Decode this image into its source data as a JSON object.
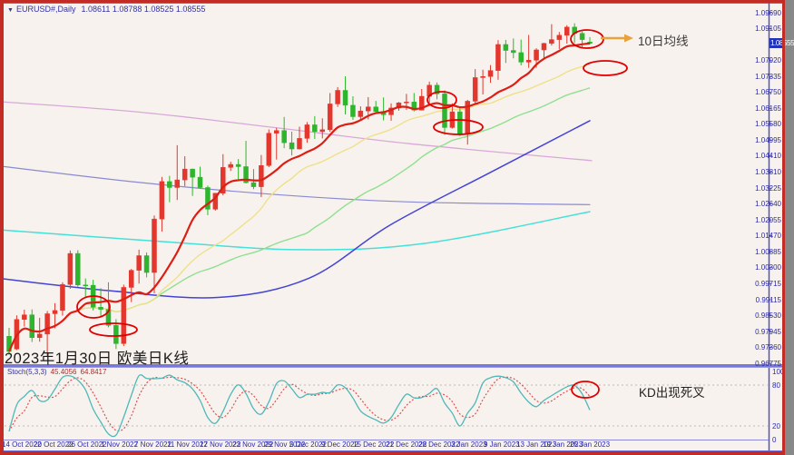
{
  "window": {
    "frame_color": "#C22C24",
    "background": "#F8F2EE",
    "border_color": "#6A6AD4"
  },
  "header": {
    "dropdown_icon": "▼",
    "symbol_title": "EURUSD#,Daily",
    "ohlc_values": "1.08611 1.08788 1.08525 1.08555"
  },
  "annotations": {
    "ma_callout": "10日均线",
    "caption": "2023年1月30日 欧美日K线",
    "kd_callout": "KD出现死叉"
  },
  "price_axis": {
    "labels": [
      "1.09690",
      "1.09105",
      "1.07920",
      "1.07335",
      "1.06750",
      "1.06165",
      "1.05580",
      "1.04995",
      "1.04410",
      "1.03810",
      "1.03225",
      "1.02640",
      "1.02055",
      "1.01470",
      "1.00885",
      "1.00300",
      "0.99715",
      "0.99115",
      "0.98530",
      "0.97945",
      "0.97360",
      "0.96775"
    ],
    "current_price": "1.08555"
  },
  "time_axis": {
    "labels": [
      "14 Oct 2022",
      "20 Oct 2022",
      "26 Oct 2022",
      "1 Nov 2022",
      "7 Nov 2022",
      "11 Nov 2022",
      "17 Nov 2022",
      "23 Nov 2022",
      "29 Nov 2022",
      "5 Dec 2022",
      "9 Dec 2022",
      "15 Dec 2022",
      "21 Dec 2022",
      "28 Dec 2022",
      "3 Jan 2023",
      "9 Jan 2023",
      "13 Jan 2023",
      "19 Jan 2023",
      "25 Jan 2023"
    ],
    "x_positions": [
      2,
      37,
      74,
      111,
      148,
      184,
      220,
      256,
      291,
      319,
      354,
      389,
      425,
      461,
      497,
      533,
      569,
      598,
      628
    ]
  },
  "indicator_panel": {
    "label": "Stoch(5,3,3)",
    "k_value": "45.4056",
    "d_value": "64.8417",
    "scale_labels": [
      "100",
      "80",
      "20",
      "0"
    ],
    "scale_values": [
      100,
      80,
      20,
      0
    ]
  },
  "chart_data": {
    "type": "candlestick",
    "symbol": "EURUSD#",
    "timeframe": "Daily",
    "title": "EURUSD#,Daily 1.08611 1.08788 1.08525 1.08555",
    "ylim": [
      0.96775,
      1.0969
    ],
    "up_color": "#E3372E",
    "down_color": "#2EB52E",
    "dates": [
      "2022-10-14",
      "2022-10-17",
      "2022-10-18",
      "2022-10-19",
      "2022-10-20",
      "2022-10-21",
      "2022-10-24",
      "2022-10-25",
      "2022-10-26",
      "2022-10-27",
      "2022-10-28",
      "2022-10-31",
      "2022-11-01",
      "2022-11-02",
      "2022-11-03",
      "2022-11-04",
      "2022-11-07",
      "2022-11-08",
      "2022-11-09",
      "2022-11-10",
      "2022-11-11",
      "2022-11-14",
      "2022-11-15",
      "2022-11-16",
      "2022-11-17",
      "2022-11-18",
      "2022-11-21",
      "2022-11-22",
      "2022-11-23",
      "2022-11-24",
      "2022-11-25",
      "2022-11-28",
      "2022-11-29",
      "2022-11-30",
      "2022-12-01",
      "2022-12-02",
      "2022-12-05",
      "2022-12-06",
      "2022-12-07",
      "2022-12-08",
      "2022-12-09",
      "2022-12-12",
      "2022-12-13",
      "2022-12-14",
      "2022-12-15",
      "2022-12-16",
      "2022-12-19",
      "2022-12-20",
      "2022-12-21",
      "2022-12-22",
      "2022-12-23",
      "2022-12-26",
      "2022-12-27",
      "2022-12-28",
      "2022-12-29",
      "2022-12-30",
      "2023-01-02",
      "2023-01-03",
      "2023-01-04",
      "2023-01-05",
      "2023-01-06",
      "2023-01-09",
      "2023-01-10",
      "2023-01-11",
      "2023-01-12",
      "2023-01-13",
      "2023-01-16",
      "2023-01-17",
      "2023-01-18",
      "2023-01-19",
      "2023-01-20",
      "2023-01-23",
      "2023-01-24",
      "2023-01-25",
      "2023-01-26",
      "2023-01-27",
      "2023-01-30"
    ],
    "ohlc": [
      [
        0.9777,
        0.9808,
        0.9709,
        0.9721
      ],
      [
        0.973,
        0.9854,
        0.9726,
        0.9839
      ],
      [
        0.9839,
        0.9875,
        0.9813,
        0.9856
      ],
      [
        0.9856,
        0.9876,
        0.9756,
        0.9772
      ],
      [
        0.9772,
        0.9845,
        0.9757,
        0.9785
      ],
      [
        0.9785,
        0.987,
        0.9704,
        0.986
      ],
      [
        0.986,
        0.9899,
        0.9807,
        0.9872
      ],
      [
        0.9872,
        0.9976,
        0.9853,
        0.9968
      ],
      [
        0.9968,
        1.0093,
        0.9952,
        1.0082
      ],
      [
        1.0082,
        1.0094,
        0.9959,
        0.9966
      ],
      [
        0.9966,
        0.999,
        0.9923,
        0.9965
      ],
      [
        0.9965,
        0.9985,
        0.9872,
        0.9884
      ],
      [
        0.9884,
        0.9954,
        0.9853,
        0.9876
      ],
      [
        0.9876,
        0.9976,
        0.981,
        0.9817
      ],
      [
        0.9817,
        0.984,
        0.973,
        0.975
      ],
      [
        0.975,
        0.9967,
        0.9741,
        0.9957
      ],
      [
        0.9957,
        1.0025,
        0.9903,
        1.002
      ],
      [
        1.002,
        1.0096,
        0.9971,
        1.0074
      ],
      [
        1.0074,
        1.0086,
        0.9994,
        1.0012
      ],
      [
        1.0012,
        1.0222,
        0.9935,
        1.0209
      ],
      [
        1.0209,
        1.0364,
        1.0163,
        1.0347
      ],
      [
        1.0347,
        1.0368,
        1.0271,
        1.0325
      ],
      [
        1.0325,
        1.0481,
        1.0279,
        1.0353
      ],
      [
        1.0353,
        1.044,
        1.033,
        1.0393
      ],
      [
        1.0393,
        1.0395,
        1.0294,
        1.0363
      ],
      [
        1.0363,
        1.0402,
        1.032,
        1.0325
      ],
      [
        1.0325,
        1.0332,
        1.0223,
        1.0245
      ],
      [
        1.0245,
        1.0305,
        1.024,
        1.0304
      ],
      [
        1.0304,
        1.0448,
        1.0296,
        1.0399
      ],
      [
        1.0399,
        1.042,
        1.0386,
        1.041
      ],
      [
        1.041,
        1.043,
        1.0348,
        1.0402
      ],
      [
        1.0402,
        1.0497,
        1.034,
        1.0343
      ],
      [
        1.0343,
        1.0393,
        1.0319,
        1.0328
      ],
      [
        1.0328,
        1.0445,
        1.029,
        1.0406
      ],
      [
        1.0406,
        1.0539,
        1.04,
        1.0525
      ],
      [
        1.0525,
        1.0545,
        1.0428,
        1.0535
      ],
      [
        1.0535,
        1.0585,
        1.047,
        1.049
      ],
      [
        1.049,
        1.0531,
        1.0443,
        1.0467
      ],
      [
        1.0467,
        1.0549,
        1.0465,
        1.0506
      ],
      [
        1.0506,
        1.0566,
        1.049,
        1.0556
      ],
      [
        1.0556,
        1.0588,
        1.0504,
        1.0531
      ],
      [
        1.0531,
        1.058,
        1.0506,
        1.0538
      ],
      [
        1.0538,
        1.0673,
        1.053,
        1.0633
      ],
      [
        1.0633,
        1.0695,
        1.0622,
        1.0683
      ],
      [
        1.0683,
        1.0735,
        1.0594,
        1.0628
      ],
      [
        1.0628,
        1.0661,
        1.0574,
        1.0586
      ],
      [
        1.0586,
        1.0624,
        1.0575,
        1.0607
      ],
      [
        1.0607,
        1.0658,
        1.0576,
        1.0622
      ],
      [
        1.0622,
        1.0644,
        1.0596,
        1.0605
      ],
      [
        1.0605,
        1.0657,
        1.0572,
        1.0593
      ],
      [
        1.0593,
        1.0635,
        1.0571,
        1.0618
      ],
      [
        1.0618,
        1.064,
        1.0608,
        1.0637
      ],
      [
        1.0637,
        1.067,
        1.0611,
        1.064
      ],
      [
        1.064,
        1.0673,
        1.0605,
        1.061
      ],
      [
        1.061,
        1.0688,
        1.0609,
        1.0661
      ],
      [
        1.0661,
        1.0715,
        1.0638,
        1.0702
      ],
      [
        1.0702,
        1.0712,
        1.065,
        1.067
      ],
      [
        1.067,
        1.0683,
        1.0519,
        1.0546
      ],
      [
        1.0546,
        1.0635,
        1.0542,
        1.0604
      ],
      [
        1.0604,
        1.0621,
        1.0515,
        1.0521
      ],
      [
        1.0521,
        1.0648,
        1.0483,
        1.0643
      ],
      [
        1.0643,
        1.0761,
        1.0634,
        1.073
      ],
      [
        1.073,
        1.0759,
        1.0668,
        1.0734
      ],
      [
        1.0734,
        1.0776,
        1.0711,
        1.0756
      ],
      [
        1.0756,
        1.0868,
        1.0722,
        1.0852
      ],
      [
        1.0852,
        1.0869,
        1.0784,
        1.083
      ],
      [
        1.083,
        1.0874,
        1.0801,
        1.0822
      ],
      [
        1.0822,
        1.087,
        1.0775,
        1.0787
      ],
      [
        1.0787,
        1.0887,
        1.0766,
        1.0794
      ],
      [
        1.0794,
        1.0838,
        1.0766,
        1.0832
      ],
      [
        1.0832,
        1.0858,
        1.0802,
        1.0856
      ],
      [
        1.0856,
        1.0927,
        1.0848,
        1.087
      ],
      [
        1.087,
        1.0898,
        1.0835,
        1.0886
      ],
      [
        1.0886,
        1.0923,
        1.0855,
        1.0916
      ],
      [
        1.0916,
        1.093,
        1.0858,
        1.0893
      ],
      [
        1.0893,
        1.09,
        1.0837,
        1.087
      ],
      [
        1.0861,
        1.0879,
        1.0852,
        1.0856
      ]
    ],
    "moving_averages": [
      {
        "name": "SMA10",
        "color": "#DC1E14",
        "width": 2.2,
        "window": 10
      },
      {
        "name": "SMA20",
        "color": "#EFE08A",
        "width": 1.4,
        "window": 20
      },
      {
        "name": "SMA40",
        "color": "#8FE08F",
        "width": 1.4,
        "window": 40
      }
    ],
    "overlay_lines": [
      {
        "name": "violet-ma",
        "color": "#D8A8D8",
        "width": 1.3,
        "points": [
          [
            0,
            1.0641
          ],
          [
            150,
            1.0604
          ],
          [
            300,
            1.0547
          ],
          [
            450,
            1.0487
          ],
          [
            652,
            1.0424
          ]
        ]
      },
      {
        "name": "navy-ma",
        "color": "#8A8AD0",
        "width": 1.2,
        "points": [
          [
            0,
            1.0404
          ],
          [
            150,
            1.0345
          ],
          [
            300,
            1.03
          ],
          [
            450,
            1.0272
          ],
          [
            650,
            1.0262
          ]
        ]
      },
      {
        "name": "cyan-ma",
        "color": "#45E0D8",
        "width": 1.5,
        "points": [
          [
            0,
            1.0169
          ],
          [
            170,
            1.0128
          ],
          [
            330,
            1.0096
          ],
          [
            470,
            1.012
          ],
          [
            650,
            1.0236
          ]
        ]
      },
      {
        "name": "royalblue-ma",
        "color": "#4343D6",
        "width": 1.5,
        "points": [
          [
            0,
            0.999
          ],
          [
            120,
            0.9945
          ],
          [
            240,
            0.992
          ],
          [
            340,
            0.999
          ],
          [
            430,
            1.0187
          ],
          [
            540,
            1.038
          ],
          [
            650,
            1.0571
          ]
        ]
      }
    ],
    "stochastic": {
      "params": [
        5,
        3,
        3
      ],
      "k_color": "#4FB8B8",
      "d_color": "#E05050",
      "levels": [
        80,
        20
      ],
      "k_last": 45.4056,
      "d_last": 64.8417
    },
    "markup_ellipses": [
      {
        "cx": 103,
        "cy": 338,
        "rx": 18,
        "ry": 12
      },
      {
        "cx": 125,
        "cy": 363,
        "rx": 26,
        "ry": 7
      },
      {
        "cx": 487,
        "cy": 110,
        "rx": 16,
        "ry": 9
      },
      {
        "cx": 505,
        "cy": 140,
        "rx": 27,
        "ry": 8
      },
      {
        "cx": 647,
        "cy": 43,
        "rx": 18,
        "ry": 10
      },
      {
        "cx": 667,
        "cy": 75,
        "rx": 24,
        "ry": 8
      },
      {
        "cx": 645,
        "cy": 429,
        "rx": 15,
        "ry": 9
      }
    ],
    "arrow": {
      "x1": 662,
      "y1": 42,
      "x2": 698,
      "y2": 42,
      "color": "#E8A23B"
    }
  }
}
